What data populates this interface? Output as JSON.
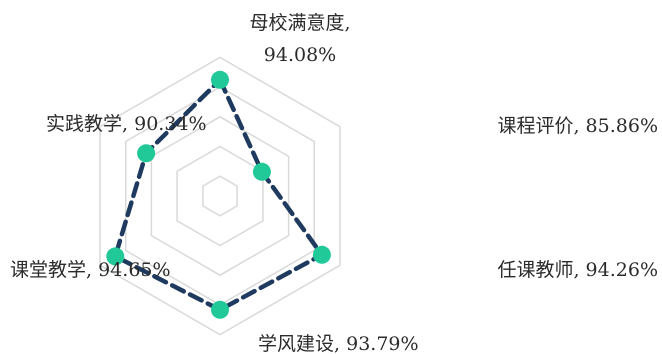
{
  "chart_data": {
    "type": "radar",
    "categories": [
      "母校满意度",
      "课程评价",
      "任课教师",
      "学风建设",
      "课堂教学",
      "实践教学"
    ],
    "series": [
      {
        "values": [
          94.08,
          85.86,
          94.26,
          93.79,
          94.65,
          90.34
        ]
      }
    ],
    "labels": [
      {
        "name": "母校满意度",
        "value": "94.08%"
      },
      {
        "name": "课程评价",
        "value": "85.86%"
      },
      {
        "name": "任课教师",
        "value": "94.26%"
      },
      {
        "name": "学风建设",
        "value": "93.79%"
      },
      {
        "name": "课堂教学",
        "value": "94.65%"
      },
      {
        "name": "实践教学",
        "value": "90.34%"
      }
    ],
    "rlim": [
      80,
      100
    ],
    "grid": true,
    "colors": {
      "line": "#1f3a5f",
      "marker": "#20c997",
      "grid": "#d9d9d9"
    }
  }
}
